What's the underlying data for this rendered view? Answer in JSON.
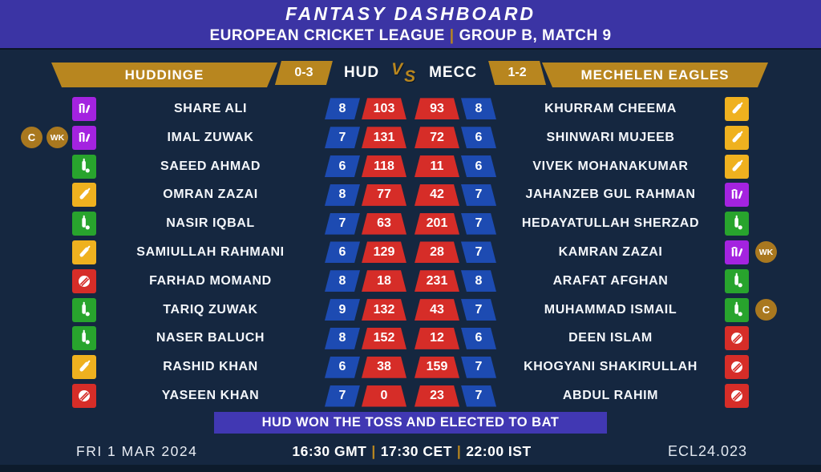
{
  "header": {
    "title": "FANTASY DASHBOARD",
    "league": "EUROPEAN CRICKET LEAGUE",
    "separator": "|",
    "match_info": "GROUP B, MATCH 9"
  },
  "scoreboard": {
    "home": {
      "name": "HUDDINGE",
      "abbr": "HUD",
      "record": "0-3"
    },
    "away": {
      "name": "MECHELEN EAGLES",
      "abbr": "MECC",
      "record": "1-2"
    },
    "vs": "VS"
  },
  "roster": {
    "home": [
      {
        "name": "SHARE ALI",
        "role": "wicketkeeper",
        "matches": "8",
        "points": "103",
        "badges": []
      },
      {
        "name": "IMAL ZUWAK",
        "role": "wicketkeeper",
        "matches": "7",
        "points": "131",
        "badges": [
          "C",
          "WK"
        ]
      },
      {
        "name": "SAEED AHMAD",
        "role": "allrounder",
        "matches": "6",
        "points": "118",
        "badges": []
      },
      {
        "name": "OMRAN ZAZAI",
        "role": "batsman",
        "matches": "8",
        "points": "77",
        "badges": []
      },
      {
        "name": "NASIR IQBAL",
        "role": "allrounder",
        "matches": "7",
        "points": "63",
        "badges": []
      },
      {
        "name": "SAMIULLAH RAHMANI",
        "role": "batsman",
        "matches": "6",
        "points": "129",
        "badges": []
      },
      {
        "name": "FARHAD MOMAND",
        "role": "bowler",
        "matches": "8",
        "points": "18",
        "badges": []
      },
      {
        "name": "TARIQ ZUWAK",
        "role": "allrounder",
        "matches": "9",
        "points": "132",
        "badges": []
      },
      {
        "name": "NASER BALUCH",
        "role": "allrounder",
        "matches": "8",
        "points": "152",
        "badges": []
      },
      {
        "name": "RASHID KHAN",
        "role": "batsman",
        "matches": "6",
        "points": "38",
        "badges": []
      },
      {
        "name": "YASEEN KHAN",
        "role": "bowler",
        "matches": "7",
        "points": "0",
        "badges": []
      }
    ],
    "away": [
      {
        "name": "KHURRAM CHEEMA",
        "role": "batsman",
        "matches": "8",
        "points": "93",
        "badges": []
      },
      {
        "name": "SHINWARI MUJEEB",
        "role": "batsman",
        "matches": "6",
        "points": "72",
        "badges": []
      },
      {
        "name": "VIVEK MOHANAKUMAR",
        "role": "batsman",
        "matches": "6",
        "points": "11",
        "badges": []
      },
      {
        "name": "JAHANZEB GUL RAHMAN",
        "role": "wicketkeeper",
        "matches": "7",
        "points": "42",
        "badges": []
      },
      {
        "name": "HEDAYATULLAH SHERZAD",
        "role": "allrounder",
        "matches": "7",
        "points": "201",
        "badges": []
      },
      {
        "name": "KAMRAN ZAZAI",
        "role": "wicketkeeper",
        "matches": "7",
        "points": "28",
        "badges": [
          "WK"
        ]
      },
      {
        "name": "ARAFAT AFGHAN",
        "role": "allrounder",
        "matches": "8",
        "points": "231",
        "badges": []
      },
      {
        "name": "MUHAMMAD ISMAIL",
        "role": "allrounder",
        "matches": "7",
        "points": "43",
        "badges": [
          "C"
        ]
      },
      {
        "name": "DEEN ISLAM",
        "role": "bowler",
        "matches": "6",
        "points": "12",
        "badges": []
      },
      {
        "name": "KHOGYANI SHAKIRULLAH",
        "role": "bowler",
        "matches": "7",
        "points": "159",
        "badges": []
      },
      {
        "name": "ABDUL RAHIM",
        "role": "bowler",
        "matches": "7",
        "points": "23",
        "badges": []
      }
    ]
  },
  "footer": {
    "toss_note": "HUD WON THE TOSS AND ELECTED TO BAT",
    "date": "FRI 1 MAR 2024",
    "times": [
      "16:30 GMT",
      "17:30 CET",
      "22:00 IST"
    ],
    "time_separator": "|",
    "match_code": "ECL24.023"
  },
  "colors": {
    "background": "#152740",
    "band_indigo": "#3b34a4",
    "toss_band": "#4138b3",
    "gold": "#b8861f",
    "badge_gold": "#a9781f",
    "chip_blue": "#1d4bb2",
    "chip_red": "#d62d28",
    "role_wicketkeeper": "#a423e0",
    "role_allrounder": "#28a42d",
    "role_batsman": "#efb11f",
    "role_bowler": "#d62d28",
    "text": "#ffffff"
  },
  "icons": {
    "wicketkeeper": "stumps-icon",
    "allrounder": "bat-and-ball-icon",
    "batsman": "bat-icon",
    "bowler": "cricket-ball-icon",
    "captain": "captain-badge",
    "keeper_badge": "wicketkeeper-badge"
  }
}
